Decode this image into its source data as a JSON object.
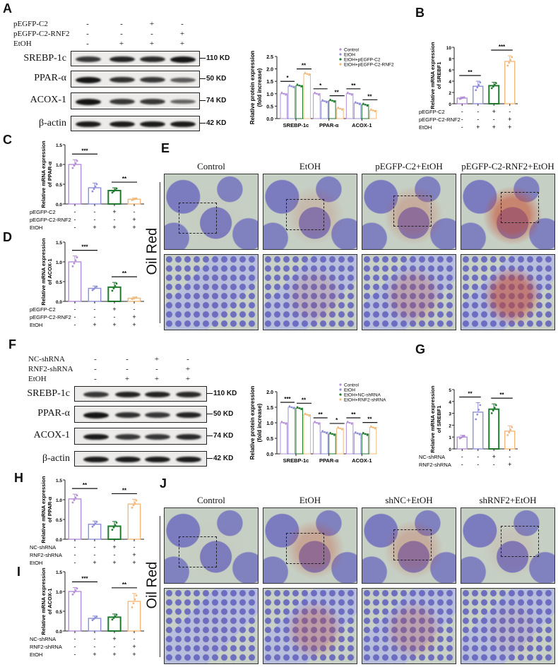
{
  "panels": {
    "A": {
      "letter": "A",
      "conditions": [
        {
          "label": "pEGFP-C2",
          "signs": [
            "-",
            "-",
            "+",
            "-"
          ]
        },
        {
          "label": "pEGFP-C2-RNF2",
          "signs": [
            "-",
            "-",
            "-",
            "+"
          ]
        },
        {
          "label": "EtOH",
          "signs": [
            "-",
            "+",
            "+",
            "+"
          ]
        }
      ],
      "bands": [
        {
          "name": "SREBP-1c",
          "kd": "110 KD",
          "intensity": [
            0.75,
            0.9,
            0.85,
            1.0
          ]
        },
        {
          "name": "PPAR-α",
          "kd": "50 KD",
          "intensity": [
            1.0,
            0.8,
            0.75,
            0.5
          ]
        },
        {
          "name": "ACOX-1",
          "kd": "74 KD",
          "intensity": [
            1.0,
            0.75,
            0.75,
            0.45
          ]
        },
        {
          "name": "β-actin",
          "kd": "42 KD",
          "intensity": [
            0.95,
            0.95,
            0.95,
            0.95
          ]
        }
      ]
    },
    "E": {
      "letter": "E",
      "side_label": "Oil Red",
      "titles": [
        "Control",
        "EtOH",
        "pEGFP-C2+EtOH",
        "pEGFP-C2-RNF2+EtOH"
      ],
      "red_staining": [
        0.02,
        0.15,
        0.25,
        0.55
      ]
    },
    "F": {
      "letter": "F",
      "conditions": [
        {
          "label": "NC-shRNA",
          "signs": [
            "-",
            "-",
            "+",
            "-"
          ]
        },
        {
          "label": "RNF2-shRNA",
          "signs": [
            "-",
            "-",
            "-",
            "+"
          ]
        },
        {
          "label": "EtOH",
          "signs": [
            "-",
            "+",
            "+",
            "+"
          ]
        }
      ],
      "bands": [
        {
          "name": "SREBP-1c",
          "kd": "110 KD",
          "intensity": [
            0.75,
            0.9,
            0.9,
            0.85
          ]
        },
        {
          "name": "PPAR-α",
          "kd": "50 KD",
          "intensity": [
            1.0,
            0.8,
            0.75,
            0.9
          ]
        },
        {
          "name": "ACOX-1",
          "kd": "74 KD",
          "intensity": [
            0.95,
            0.75,
            0.75,
            0.85
          ]
        },
        {
          "name": "β-actin",
          "kd": "42 KD",
          "intensity": [
            0.95,
            0.95,
            0.95,
            0.95
          ]
        }
      ]
    },
    "J": {
      "letter": "J",
      "side_label": "Oil Red",
      "titles": [
        "Control",
        "EtOH",
        "shNC+EtOH",
        "shRNF2+EtOH"
      ],
      "red_staining": [
        0.02,
        0.3,
        0.25,
        0.08
      ]
    }
  },
  "colors": {
    "control": "#b48fd8",
    "etoh": "#8f8fd8",
    "group3": "#1f7a2e",
    "group4": "#f2b97a"
  },
  "chart_data": [
    {
      "id": "A-quant",
      "type": "bar",
      "title": "",
      "xlabel": "",
      "ylabel": "Relative protein expression (fold increase)",
      "categories": [
        "SREBP-1c",
        "PPAR-α",
        "ACOX-1"
      ],
      "ylim": [
        0,
        2.5
      ],
      "yticks": [
        0.0,
        0.5,
        1.0,
        1.5,
        2.0,
        2.5
      ],
      "legend_position": "top-right",
      "series": [
        {
          "name": "Control",
          "values": [
            1.0,
            1.0,
            1.0
          ]
        },
        {
          "name": "EtOH",
          "values": [
            1.3,
            0.7,
            0.62
          ]
        },
        {
          "name": "EtOH+pEGFP-C2",
          "values": [
            1.33,
            0.72,
            0.56
          ]
        },
        {
          "name": "EtOH+pEGFP-C2-RNF2",
          "values": [
            1.8,
            0.4,
            0.33
          ]
        }
      ],
      "significance": [
        {
          "category": "SREBP-1c",
          "pair": "Control-EtOH",
          "label": "*"
        },
        {
          "category": "SREBP-1c",
          "pair": "G3-G4",
          "label": "**"
        },
        {
          "category": "PPAR-α",
          "pair": "Control-EtOH",
          "label": "*"
        },
        {
          "category": "PPAR-α",
          "pair": "G3-G4",
          "label": "**"
        },
        {
          "category": "ACOX-1",
          "pair": "Control-EtOH",
          "label": "**"
        },
        {
          "category": "ACOX-1",
          "pair": "G3-G4",
          "label": "**"
        }
      ]
    },
    {
      "id": "B",
      "letter": "B",
      "type": "bar",
      "ylabel": "Relative mRNA expression of SREBF1",
      "ylim": [
        0,
        10
      ],
      "yticks": [
        0,
        2,
        4,
        6,
        8,
        10
      ],
      "values": [
        1.0,
        3.1,
        3.2,
        7.5
      ],
      "errors": [
        0.2,
        0.9,
        0.6,
        1.0
      ],
      "significance": [
        {
          "pair": "1-2",
          "label": "**"
        },
        {
          "pair": "3-4",
          "label": "***"
        }
      ],
      "conditions": [
        {
          "label": "pEGFP-C2",
          "signs": [
            "-",
            "-",
            "+",
            "-"
          ]
        },
        {
          "label": "pEGFP-C2-RNF2",
          "signs": [
            "-",
            "-",
            "-",
            "+"
          ]
        },
        {
          "label": "EtOH",
          "signs": [
            "-",
            "+",
            "+",
            "+"
          ]
        }
      ]
    },
    {
      "id": "C",
      "letter": "C",
      "type": "bar",
      "ylabel": "Relative mRNA expression of PPAR-α",
      "ylim": [
        0,
        1.5
      ],
      "yticks": [
        0.0,
        0.5,
        1.0,
        1.5
      ],
      "values": [
        1.0,
        0.41,
        0.34,
        0.12
      ],
      "errors": [
        0.12,
        0.12,
        0.07,
        0.03
      ],
      "significance": [
        {
          "pair": "1-2",
          "label": "***"
        },
        {
          "pair": "3-4",
          "label": "**"
        }
      ],
      "conditions": [
        {
          "label": "pEGFP-C2",
          "signs": [
            "-",
            "-",
            "+",
            "-"
          ]
        },
        {
          "label": "pEGFP-C2-RNF2",
          "signs": [
            "-",
            "-",
            "-",
            "+"
          ]
        },
        {
          "label": "EtOH",
          "signs": [
            "-",
            "+",
            "+",
            "+"
          ]
        }
      ]
    },
    {
      "id": "D",
      "letter": "D",
      "type": "bar",
      "ylabel": "Relative mRNA expression of ACOX-1",
      "ylim": [
        0,
        1.5
      ],
      "yticks": [
        0.0,
        0.5,
        1.0,
        1.5
      ],
      "values": [
        1.0,
        0.33,
        0.36,
        0.08
      ],
      "errors": [
        0.15,
        0.06,
        0.12,
        0.03
      ],
      "significance": [
        {
          "pair": "1-2",
          "label": "***"
        },
        {
          "pair": "3-4",
          "label": "**"
        }
      ],
      "conditions": [
        {
          "label": "pEGFP-C2",
          "signs": [
            "-",
            "-",
            "+",
            "-"
          ]
        },
        {
          "label": "pEGFP-C2-RNF2",
          "signs": [
            "-",
            "-",
            "-",
            "+"
          ]
        },
        {
          "label": "EtOH",
          "signs": [
            "-",
            "+",
            "+",
            "+"
          ]
        }
      ]
    },
    {
      "id": "F-quant",
      "type": "bar",
      "ylabel": "Relative protein expression (fold increase)",
      "categories": [
        "SREBP-1c",
        "PPAR-α",
        "ACOX-1"
      ],
      "ylim": [
        0,
        2.0
      ],
      "yticks": [
        0.0,
        0.5,
        1.0,
        1.5,
        2.0
      ],
      "legend_position": "top-right",
      "series": [
        {
          "name": "Control",
          "values": [
            1.0,
            1.0,
            1.0
          ]
        },
        {
          "name": "EtOH",
          "values": [
            1.5,
            0.7,
            0.66
          ]
        },
        {
          "name": "EtOH+NC-shRNA",
          "values": [
            1.47,
            0.64,
            0.64
          ]
        },
        {
          "name": "EtOH+RNF2-shRNA",
          "values": [
            1.26,
            0.82,
            0.85
          ]
        }
      ],
      "significance": [
        {
          "category": "SREBP-1c",
          "pair": "Control-EtOH",
          "label": "***"
        },
        {
          "category": "SREBP-1c",
          "pair": "G3-G4",
          "label": "**"
        },
        {
          "category": "PPAR-α",
          "pair": "Control-EtOH",
          "label": "**"
        },
        {
          "category": "PPAR-α",
          "pair": "G3-G4",
          "label": "*"
        },
        {
          "category": "ACOX-1",
          "pair": "Control-EtOH",
          "label": "**"
        },
        {
          "category": "ACOX-1",
          "pair": "G3-G4",
          "label": "**"
        }
      ]
    },
    {
      "id": "G",
      "letter": "G",
      "type": "bar",
      "ylabel": "Relative mRNA expression of SREBF1",
      "ylim": [
        0,
        5
      ],
      "yticks": [
        0,
        1,
        2,
        3,
        4,
        5
      ],
      "values": [
        1.0,
        3.1,
        3.35,
        1.5
      ],
      "errors": [
        0.15,
        0.8,
        0.45,
        0.45
      ],
      "significance": [
        {
          "pair": "1-2",
          "label": "**"
        },
        {
          "pair": "3-4",
          "label": "**"
        }
      ],
      "conditions": [
        {
          "label": "NC-shRNA",
          "signs": [
            "-",
            "-",
            "+",
            "-"
          ]
        },
        {
          "label": "RNF2-shRNA",
          "signs": [
            "-",
            "-",
            "-",
            "+"
          ]
        },
        {
          "label": "EtOH",
          "signs": [
            "-",
            "+",
            "+",
            "+"
          ]
        }
      ]
    },
    {
      "id": "H",
      "letter": "H",
      "type": "bar",
      "ylabel": "Relative mRNA expression of PPAR-α",
      "ylim": [
        0,
        1.5
      ],
      "yticks": [
        0.0,
        0.5,
        1.0,
        1.5
      ],
      "values": [
        1.02,
        0.38,
        0.33,
        0.89
      ],
      "errors": [
        0.12,
        0.08,
        0.12,
        0.12
      ],
      "significance": [
        {
          "pair": "1-2",
          "label": "**"
        },
        {
          "pair": "3-4",
          "label": "**"
        }
      ],
      "conditions": [
        {
          "label": "NC-shRNA",
          "signs": [
            "-",
            "-",
            "+",
            "-"
          ]
        },
        {
          "label": "RNF2-shRNA",
          "signs": [
            "-",
            "-",
            "-",
            "+"
          ]
        },
        {
          "label": "EtOH",
          "signs": [
            "-",
            "+",
            "+",
            "+"
          ]
        }
      ]
    },
    {
      "id": "I",
      "letter": "I",
      "type": "bar",
      "ylabel": "Relative mRNA expression of ACOX-1",
      "ylim": [
        0,
        1.5
      ],
      "yticks": [
        0.0,
        0.5,
        1.0,
        1.5
      ],
      "values": [
        1.0,
        0.32,
        0.35,
        0.75
      ],
      "errors": [
        0.1,
        0.06,
        0.08,
        0.2
      ],
      "significance": [
        {
          "pair": "1-2",
          "label": "***"
        },
        {
          "pair": "3-4",
          "label": "**"
        }
      ],
      "conditions": [
        {
          "label": "NC-shRNA",
          "signs": [
            "-",
            "-",
            "+",
            "-"
          ]
        },
        {
          "label": "RNF2-shRNA",
          "signs": [
            "-",
            "-",
            "-",
            "+"
          ]
        },
        {
          "label": "EtOH",
          "signs": [
            "-",
            "+",
            "+",
            "+"
          ]
        }
      ]
    }
  ]
}
